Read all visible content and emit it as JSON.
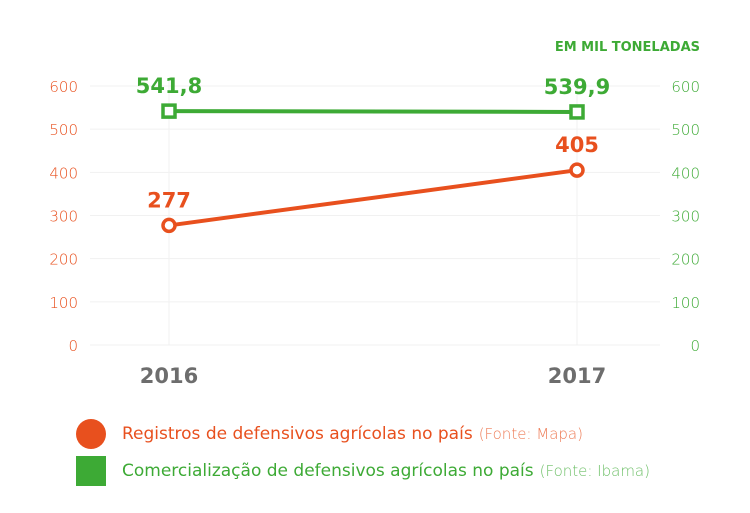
{
  "chart_data": {
    "type": "line",
    "unit_label": "EM MIL TONELADAS",
    "categories": [
      "2016",
      "2017"
    ],
    "y_left": {
      "ticks": [
        0,
        100,
        200,
        300,
        400,
        500,
        600
      ],
      "range": [
        0,
        600
      ],
      "color": "#e8501e"
    },
    "y_right": {
      "ticks": [
        0,
        100,
        200,
        300,
        400,
        500,
        600
      ],
      "range": [
        0,
        600
      ],
      "color": "#3daa35"
    },
    "grid": true,
    "series": [
      {
        "name": "Registros de defensivos agrícolas no país",
        "source": "(Fonte: Mapa)",
        "values": [
          277,
          405
        ],
        "labels": [
          "277",
          "405"
        ],
        "color": "#e8501e",
        "marker": "circle",
        "axis": "left"
      },
      {
        "name": "Comercialização de defensivos agrícolas no país",
        "source": "(Fonte: Ibama)",
        "values": [
          541.8,
          539.9
        ],
        "labels": [
          "541,8",
          "539,9"
        ],
        "color": "#3daa35",
        "marker": "square",
        "axis": "right"
      }
    ],
    "legend": "bottom"
  }
}
